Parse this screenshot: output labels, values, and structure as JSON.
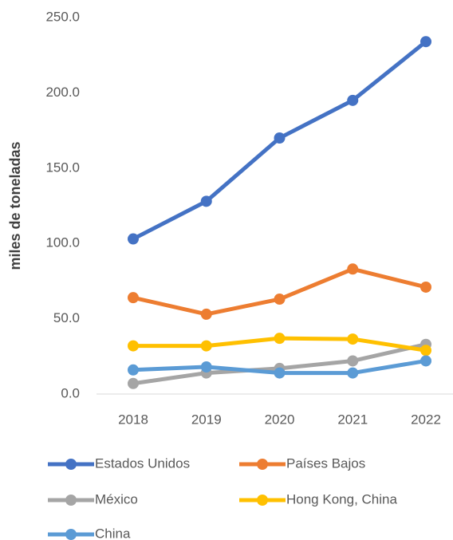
{
  "chart_data": {
    "type": "line",
    "y_label": "miles de toneladas",
    "categories": [
      "2018",
      "2019",
      "2020",
      "2021",
      "2022"
    ],
    "series": [
      {
        "name": "Estados Unidos",
        "color": "#4472c4",
        "values": [
          103,
          128,
          170,
          195,
          234
        ]
      },
      {
        "name": "Países Bajos",
        "color": "#ed7d31",
        "values": [
          64,
          53,
          63,
          83,
          71
        ]
      },
      {
        "name": "México",
        "color": "#a5a5a5",
        "values": [
          7,
          14,
          17,
          22,
          33
        ]
      },
      {
        "name": "Hong Kong, China",
        "color": "#ffc000",
        "values": [
          32,
          32,
          37,
          36.5,
          29
        ]
      },
      {
        "name": "China",
        "color": "#5b9bd5",
        "values": [
          16,
          18,
          14,
          14,
          22
        ]
      }
    ],
    "ylim": [
      0,
      250
    ],
    "yticks": [
      {
        "value": 0,
        "label": "0.0"
      },
      {
        "value": 50,
        "label": "50.0"
      },
      {
        "value": 100,
        "label": "100.0"
      },
      {
        "value": 150,
        "label": "150.0"
      },
      {
        "value": 200,
        "label": "200.0"
      },
      {
        "value": 250,
        "label": "250.0"
      }
    ],
    "grid": false
  }
}
